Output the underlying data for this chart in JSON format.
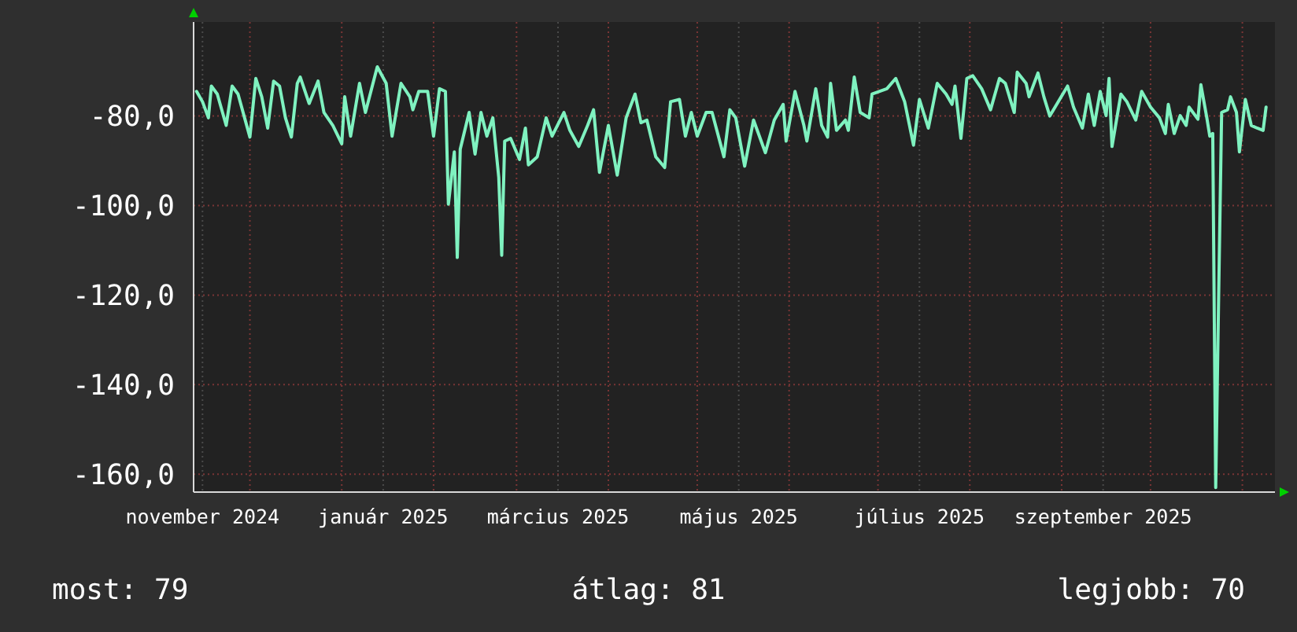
{
  "chart_data": {
    "type": "line",
    "color": "#7ff2c0",
    "x": [
      "2024-11-13",
      "2024-11-15",
      "2024-11-17",
      "2024-11-18",
      "2024-11-20",
      "2024-11-23",
      "2024-11-25",
      "2024-11-27",
      "2024-12-01",
      "2024-12-03",
      "2024-12-05",
      "2024-12-07",
      "2024-12-09",
      "2024-12-11",
      "2024-12-13",
      "2024-12-15",
      "2024-12-17",
      "2024-12-18",
      "2024-12-21",
      "2024-12-24",
      "2024-12-26",
      "2024-12-29",
      "2025-01-01",
      "2025-01-02",
      "2025-01-04",
      "2025-01-07",
      "2025-01-09",
      "2025-01-13",
      "2025-01-16",
      "2025-01-18",
      "2025-01-21",
      "2025-01-24",
      "2025-01-25",
      "2025-01-27",
      "2025-01-30",
      "2025-02-01",
      "2025-02-03",
      "2025-02-05",
      "2025-02-06",
      "2025-02-08",
      "2025-02-09",
      "2025-02-10",
      "2025-02-13",
      "2025-02-15",
      "2025-02-17",
      "2025-02-19",
      "2025-02-21",
      "2025-02-23",
      "2025-02-24",
      "2025-02-25",
      "2025-02-27",
      "2025-03-02",
      "2025-03-04",
      "2025-03-05",
      "2025-03-08",
      "2025-03-11",
      "2025-03-13",
      "2025-03-17",
      "2025-03-19",
      "2025-03-22",
      "2025-03-25",
      "2025-03-27",
      "2025-03-29",
      "2025-04-01",
      "2025-04-04",
      "2025-04-07",
      "2025-04-10",
      "2025-04-12",
      "2025-04-14",
      "2025-04-17",
      "2025-04-20",
      "2025-04-22",
      "2025-04-25",
      "2025-04-27",
      "2025-04-29",
      "2025-05-01",
      "2025-05-04",
      "2025-05-06",
      "2025-05-10",
      "2025-05-12",
      "2025-05-14",
      "2025-05-17",
      "2025-05-20",
      "2025-05-24",
      "2025-05-27",
      "2025-05-30",
      "2025-05-31",
      "2025-06-03",
      "2025-06-06",
      "2025-06-07",
      "2025-06-10",
      "2025-06-12",
      "2025-06-14",
      "2025-06-15",
      "2025-06-17",
      "2025-06-20",
      "2025-06-21",
      "2025-06-23",
      "2025-06-25",
      "2025-06-28",
      "2025-06-29",
      "2025-07-04",
      "2025-07-07",
      "2025-07-10",
      "2025-07-13",
      "2025-07-15",
      "2025-07-18",
      "2025-07-21",
      "2025-07-24",
      "2025-07-26",
      "2025-07-27",
      "2025-07-29",
      "2025-07-31",
      "2025-08-02",
      "2025-08-05",
      "2025-08-08",
      "2025-08-11",
      "2025-08-13",
      "2025-08-16",
      "2025-08-17",
      "2025-08-20",
      "2025-08-21",
      "2025-08-24",
      "2025-08-26",
      "2025-08-28",
      "2025-09-03",
      "2025-09-05",
      "2025-09-08",
      "2025-09-10",
      "2025-09-12",
      "2025-09-14",
      "2025-09-16",
      "2025-09-17",
      "2025-09-18",
      "2025-09-21",
      "2025-09-23",
      "2025-09-26",
      "2025-09-28",
      "2025-10-01",
      "2025-10-04",
      "2025-10-06",
      "2025-10-07",
      "2025-10-09",
      "2025-10-11",
      "2025-10-13",
      "2025-10-14",
      "2025-10-17",
      "2025-10-18",
      "2025-10-20",
      "2025-10-21",
      "2025-10-22",
      "2025-10-23",
      "2025-10-24",
      "2025-10-25",
      "2025-10-27",
      "2025-10-28",
      "2025-10-30",
      "2025-10-31",
      "2025-11-02",
      "2025-11-04",
      "2025-11-06",
      "2025-11-08",
      "2025-11-09"
    ],
    "values": [
      -74.5,
      -76.8,
      -80.4,
      -73.3,
      -75.1,
      -82.1,
      -73.3,
      -75.1,
      -84.7,
      -71.6,
      -75.7,
      -82.7,
      -72.2,
      -73.3,
      -80.4,
      -84.7,
      -72.7,
      -71.3,
      -77.2,
      -72.2,
      -79.2,
      -82.1,
      -86.2,
      -75.7,
      -84.5,
      -72.7,
      -79.2,
      -69.0,
      -72.7,
      -84.5,
      -72.7,
      -75.7,
      -78.6,
      -74.5,
      -74.5,
      -84.5,
      -73.9,
      -74.5,
      -99.7,
      -88.0,
      -111.6,
      -87.4,
      -79.2,
      -88.5,
      -79.2,
      -84.5,
      -80.4,
      -93.7,
      -111.1,
      -85.6,
      -85.0,
      -89.7,
      -82.7,
      -90.9,
      -89.1,
      -80.4,
      -84.5,
      -79.2,
      -83.2,
      -86.8,
      -82.1,
      -78.6,
      -92.6,
      -82.1,
      -93.2,
      -80.4,
      -75.1,
      -81.5,
      -80.9,
      -89.1,
      -91.5,
      -76.8,
      -76.3,
      -84.5,
      -79.2,
      -84.5,
      -79.2,
      -79.2,
      -89.1,
      -78.6,
      -80.4,
      -91.2,
      -80.9,
      -88.2,
      -80.9,
      -77.4,
      -85.6,
      -74.5,
      -82.1,
      -85.6,
      -73.9,
      -82.1,
      -84.7,
      -72.7,
      -83.2,
      -80.9,
      -83.2,
      -71.3,
      -79.2,
      -80.4,
      -75.1,
      -73.9,
      -71.6,
      -76.8,
      -86.5,
      -76.3,
      -82.7,
      -72.7,
      -75.1,
      -77.4,
      -73.3,
      -85.0,
      -71.6,
      -71.0,
      -73.9,
      -78.6,
      -71.6,
      -72.7,
      -79.2,
      -70.2,
      -72.7,
      -75.7,
      -70.4,
      -75.7,
      -80.0,
      -73.3,
      -78.0,
      -82.7,
      -75.1,
      -82.1,
      -74.5,
      -79.9,
      -71.6,
      -86.8,
      -75.1,
      -76.8,
      -80.9,
      -74.5,
      -78.0,
      -80.4,
      -83.9,
      -77.4,
      -83.9,
      -79.9,
      -82.1,
      -78.0,
      -80.7,
      -73.0,
      -80.4,
      -84.5,
      -83.9,
      -163,
      -120,
      -79.2,
      -78.6,
      -75.7,
      -79.2,
      -88.0,
      -76.3,
      -82.1,
      -82.7,
      -83.2,
      -78.0
    ],
    "xlim": [
      "2024-11-12",
      "2025-11-12"
    ],
    "xticks": [
      {
        "value": "2024-11-15",
        "label": "november 2024"
      },
      {
        "value": "2024-12-01",
        "label": null
      },
      {
        "value": "2025-01-01",
        "label": null
      },
      {
        "value": "2025-01-15",
        "label": "január 2025"
      },
      {
        "value": "2025-02-01",
        "label": null
      },
      {
        "value": "2025-03-01",
        "label": null
      },
      {
        "value": "2025-03-15",
        "label": "március 2025"
      },
      {
        "value": "2025-04-01",
        "label": null
      },
      {
        "value": "2025-05-01",
        "label": null
      },
      {
        "value": "2025-05-15",
        "label": "május 2025"
      },
      {
        "value": "2025-06-01",
        "label": null
      },
      {
        "value": "2025-07-01",
        "label": null
      },
      {
        "value": "2025-07-15",
        "label": "július 2025"
      },
      {
        "value": "2025-08-01",
        "label": null
      },
      {
        "value": "2025-09-01",
        "label": null
      },
      {
        "value": "2025-09-15",
        "label": "szeptember 2025"
      },
      {
        "value": "2025-10-01",
        "label": null
      },
      {
        "value": "2025-11-01",
        "label": null
      }
    ],
    "ylim": [
      -164,
      -59
    ],
    "yticks": [
      {
        "value": -80,
        "label": "-80,0"
      },
      {
        "value": -100,
        "label": "-100,0"
      },
      {
        "value": -120,
        "label": "-120,0"
      },
      {
        "value": -140,
        "label": "-140,0"
      },
      {
        "value": -160,
        "label": "-160,0"
      }
    ],
    "grid": true,
    "marker": "none",
    "line_style": "solid",
    "annotations": [
      "most: 79",
      "átlag: 81",
      "legjobb: 70"
    ]
  }
}
